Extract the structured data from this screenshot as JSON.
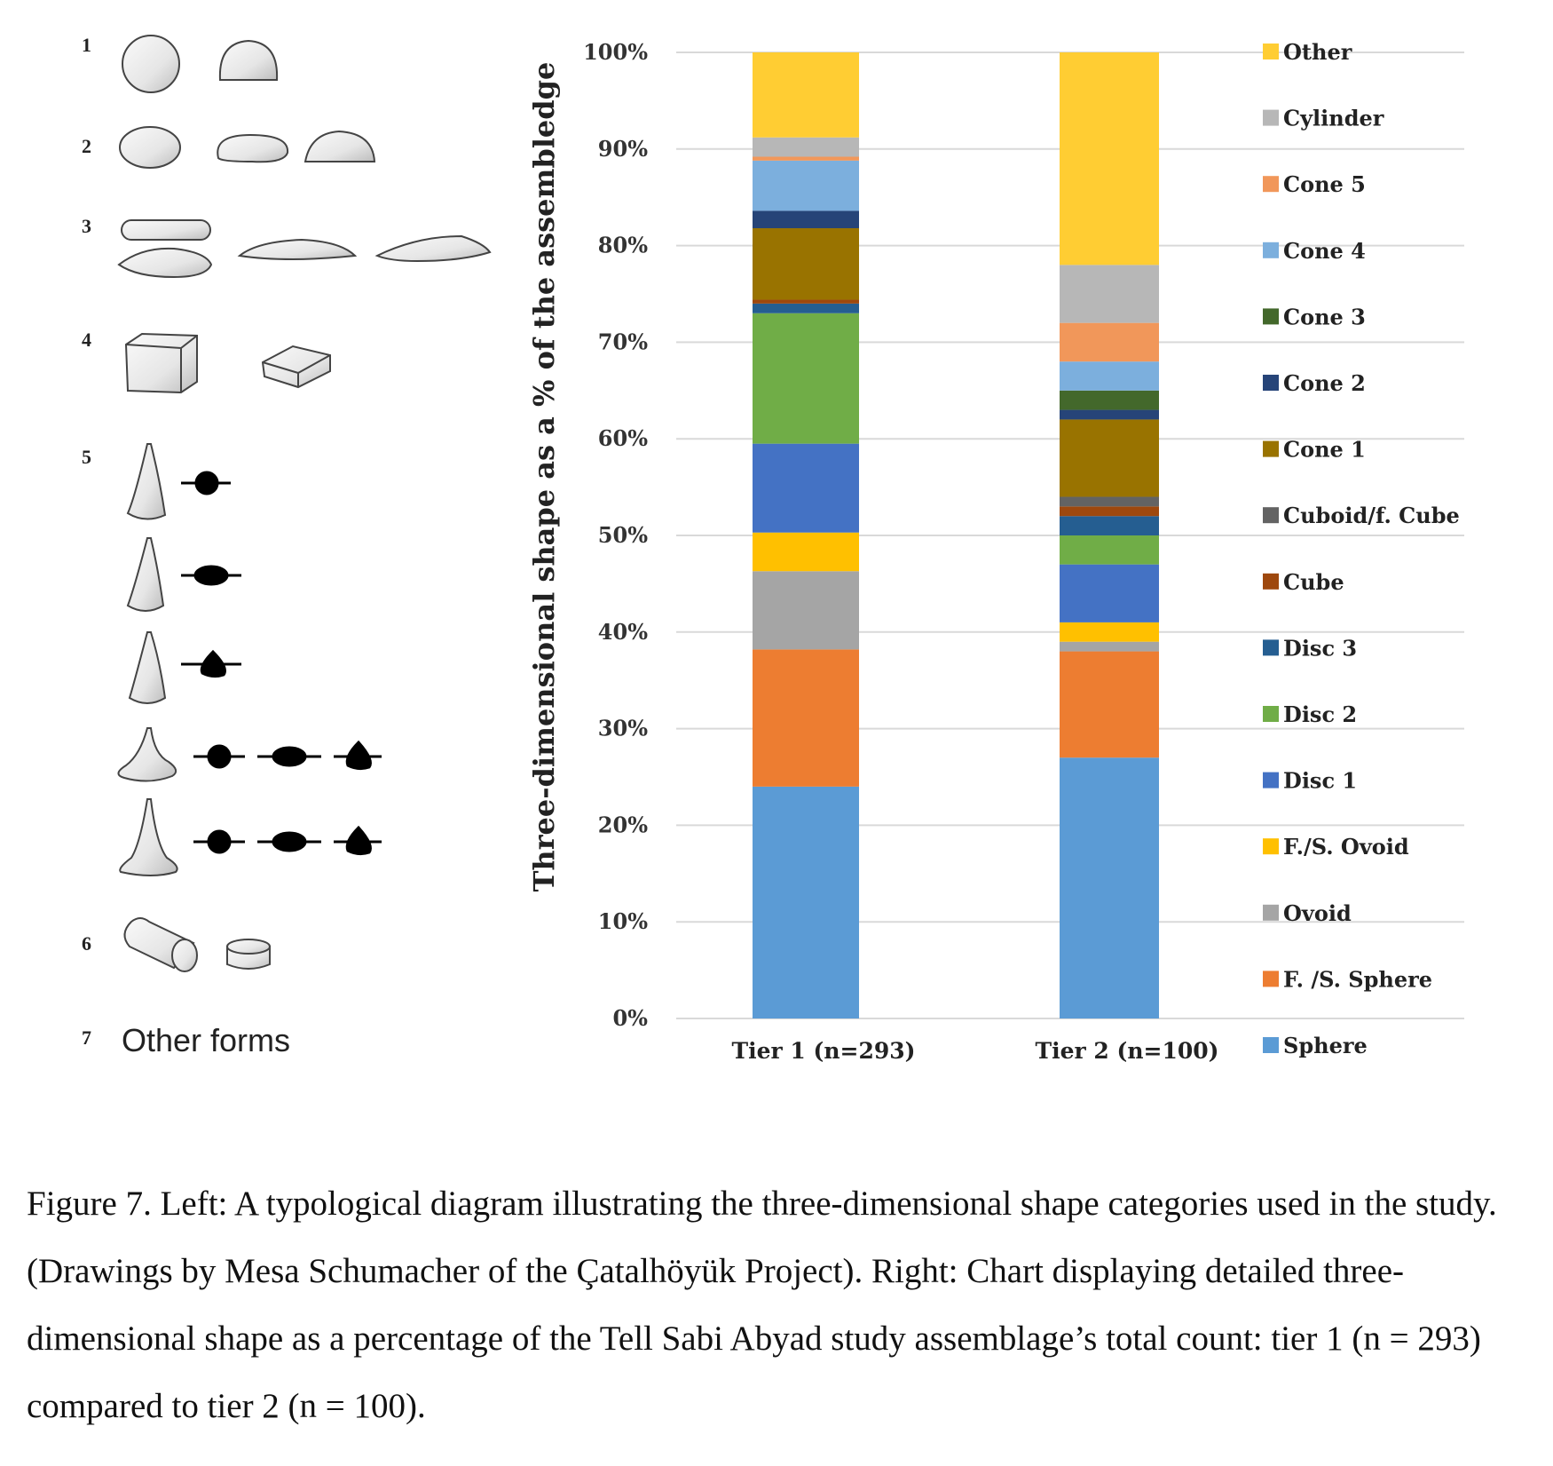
{
  "diagram": {
    "row_labels": [
      "1",
      "2",
      "3",
      "4",
      "5",
      "6",
      "7"
    ],
    "other_forms": "Other forms"
  },
  "chart_data": {
    "type": "bar",
    "stacked": true,
    "title": "",
    "xlabel": "",
    "ylabel": "Three-dimensional shape as a % of the assembledge",
    "ylim": [
      0,
      100
    ],
    "yticks": [
      "0%",
      "10%",
      "20%",
      "30%",
      "40%",
      "50%",
      "60%",
      "70%",
      "80%",
      "90%",
      "100%"
    ],
    "grid": true,
    "legend_position": "right",
    "categories": [
      "Tier 1 (n=293)",
      "Tier 2 (n=100)"
    ],
    "series": [
      {
        "name": "Sphere",
        "color": "#5b9bd5",
        "values": [
          24.0,
          27.0
        ]
      },
      {
        "name": "F. /S. Sphere",
        "color": "#ed7d31",
        "values": [
          14.2,
          11.0
        ]
      },
      {
        "name": "Ovoid",
        "color": "#a5a5a5",
        "values": [
          8.1,
          1.0
        ]
      },
      {
        "name": "F./S. Ovoid",
        "color": "#ffc000",
        "values": [
          4.0,
          2.0
        ]
      },
      {
        "name": "Disc 1",
        "color": "#4472c4",
        "values": [
          9.2,
          6.0
        ]
      },
      {
        "name": "Disc 2",
        "color": "#70ad47",
        "values": [
          13.5,
          3.0
        ]
      },
      {
        "name": "Disc 3",
        "color": "#255e91",
        "values": [
          1.0,
          2.0
        ]
      },
      {
        "name": "Cube",
        "color": "#9e480e",
        "values": [
          0.4,
          1.0
        ]
      },
      {
        "name": "Cuboid/f. Cube",
        "color": "#636363",
        "values": [
          0.0,
          1.0
        ]
      },
      {
        "name": "Cone 1",
        "color": "#997300",
        "values": [
          7.4,
          8.0
        ]
      },
      {
        "name": "Cone 2",
        "color": "#264478",
        "values": [
          1.8,
          1.0
        ]
      },
      {
        "name": "Cone 3",
        "color": "#43682b",
        "values": [
          0.0,
          2.0
        ]
      },
      {
        "name": "Cone 4",
        "color": "#7cafdd",
        "values": [
          5.2,
          3.0
        ]
      },
      {
        "name": "Cone 5",
        "color": "#f1975a",
        "values": [
          0.4,
          4.0
        ]
      },
      {
        "name": "Cylinder",
        "color": "#b7b7b7",
        "values": [
          2.0,
          6.0
        ]
      },
      {
        "name": "Other",
        "color": "#ffcd33",
        "values": [
          8.8,
          22.0
        ]
      }
    ]
  },
  "caption": "Figure 7. Left: A typological diagram illustrating the three-dimensional shape categories used in the study. (Drawings by Mesa Schumacher of the Çatalhöyük Project). Right: Chart displaying detailed three-dimensional shape as a percentage of the Tell Sabi Abyad study assemblage’s total count: tier 1 (n = 293) compared to tier 2 (n = 100)."
}
